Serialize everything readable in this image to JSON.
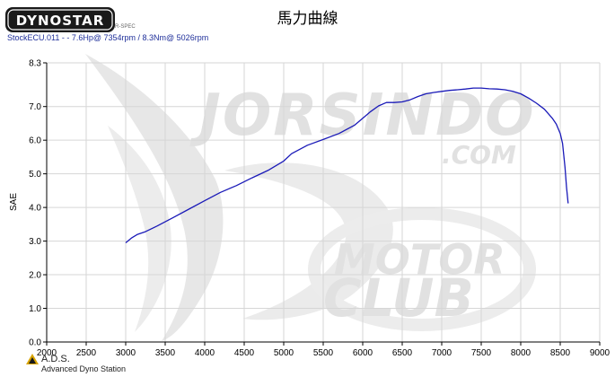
{
  "brand": {
    "logo_text": "DYNOSTAR",
    "logo_sub": "R-SPEC",
    "watermark_main": "JORSINDO",
    "watermark_domain": ".COM",
    "watermark_line1": "MOTOR",
    "watermark_line2": "CLUB"
  },
  "footer": {
    "ads_title": "A.D.S.",
    "ads_subtitle": "Advanced Dyno Station"
  },
  "run_info": "StockECU.011 -  - 7.6Hp@ 7354rpm / 8.3Nm@ 5026rpm",
  "colors": {
    "series": "#1a1ab8",
    "grid": "#d6d6d6",
    "run_info": "#1f2f9a",
    "watermark": "#e3e3e3"
  },
  "chart_data": {
    "type": "line",
    "title": "馬力曲線",
    "xlabel": "",
    "ylabel": "SAE",
    "xlim": [
      2000,
      9000
    ],
    "ylim": [
      0,
      8.3
    ],
    "xticks": [
      2000,
      2500,
      3000,
      3500,
      4000,
      4500,
      5000,
      5500,
      6000,
      6500,
      7000,
      7500,
      8000,
      8500,
      9000
    ],
    "xtick_labels": [
      "2000",
      "2500",
      "3000",
      "3500",
      "4000",
      "4500",
      "5000",
      "5500",
      "6000",
      "6500",
      "7000",
      "7500",
      "8000",
      "8500",
      "9000"
    ],
    "yticks": [
      0,
      1,
      2,
      3,
      4,
      5,
      6,
      7,
      8.3
    ],
    "ytick_labels": [
      "0.0",
      "1.0",
      "2.0",
      "3.0",
      "4.0",
      "5.0",
      "6.0",
      "7.0",
      "8.3"
    ],
    "grid": true,
    "series": [
      {
        "x": [
          3000,
          3080,
          3150,
          3250,
          3400,
          3600,
          3800,
          4000,
          4200,
          4400,
          4600,
          4800,
          5000,
          5100,
          5300,
          5500,
          5700,
          5900,
          6000,
          6100,
          6200,
          6300,
          6400,
          6500,
          6600,
          6700,
          6800,
          6900,
          7000,
          7100,
          7200,
          7300,
          7400,
          7500,
          7600,
          7700,
          7800,
          7900,
          8000,
          8100,
          8200,
          8300,
          8400,
          8450,
          8500,
          8530,
          8560,
          8580,
          8600
        ],
        "y": [
          2.95,
          3.1,
          3.2,
          3.28,
          3.45,
          3.7,
          3.95,
          4.2,
          4.45,
          4.65,
          4.88,
          5.1,
          5.38,
          5.6,
          5.85,
          6.02,
          6.2,
          6.45,
          6.65,
          6.85,
          7.02,
          7.12,
          7.12,
          7.14,
          7.2,
          7.3,
          7.38,
          7.42,
          7.45,
          7.48,
          7.5,
          7.52,
          7.55,
          7.55,
          7.53,
          7.52,
          7.5,
          7.45,
          7.38,
          7.25,
          7.1,
          6.92,
          6.65,
          6.48,
          6.2,
          5.9,
          5.2,
          4.6,
          4.12
        ]
      }
    ]
  }
}
